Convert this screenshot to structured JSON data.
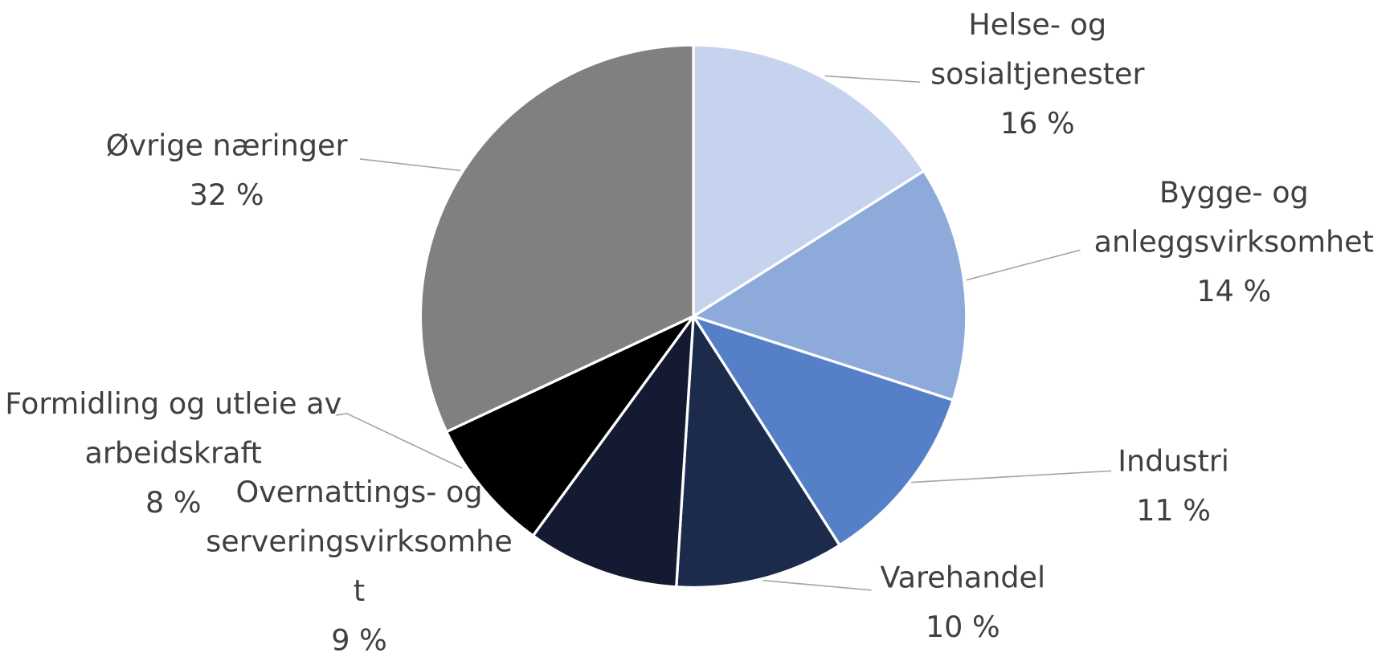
{
  "chart_data": {
    "type": "pie",
    "categories": [
      "Helse- og sosialtjenester",
      "Bygge- og anleggsvirksomhet",
      "Industri",
      "Varehandel",
      "Overnattings- og serveringsvirksomhet",
      "Formidling og utleie av arbeidskraft",
      "Øvrige næringer"
    ],
    "values": [
      16,
      14,
      11,
      10,
      9,
      8,
      32
    ],
    "value_labels": [
      "16 %",
      "14 %",
      "11 %",
      "10 %",
      "9 %",
      "8 %",
      "32 %"
    ],
    "colors": [
      "#c5d3ee",
      "#8eaadb",
      "#5580c8",
      "#1c2a4c",
      "#131a31",
      "#000000",
      "#808080"
    ]
  }
}
